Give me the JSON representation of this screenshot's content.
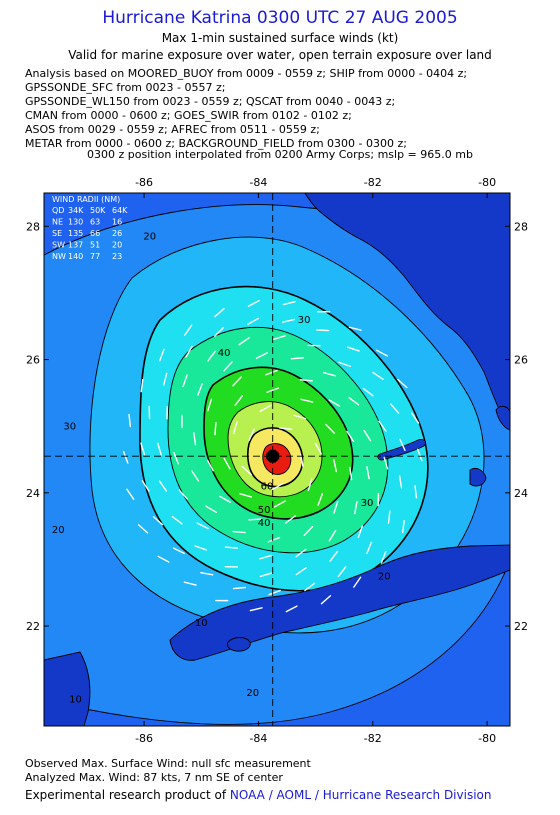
{
  "header": {
    "title": "Hurricane Katrina 0300 UTC 27 AUG 2005",
    "subtitle1": "Max 1-min sustained surface winds (kt)",
    "subtitle2": "Valid for marine exposure over water, open terrain exposure over land"
  },
  "analysis_lines": [
    "Analysis based on  MOORED_BUOY from 0009 - 0559 z;  SHIP from 0000 - 0404 z;",
    "GPSSONDE_SFC from 0023 - 0557 z;",
    "GPSSONDE_WL150 from 0023 - 0559 z;  QSCAT from 0040 - 0043 z;",
    "CMAN from 0000 - 0600 z;  GOES_SWIR from 0102 - 0102 z;",
    "ASOS from 0029 - 0559 z;  AFREC from 0511 - 0559 z;",
    "METAR from 0000 - 0600 z;  BACKGROUND_FIELD from 0300 - 0300 z;"
  ],
  "interpolation_note": "0300 z position interpolated from 0200 Army Corps; mslp = 965.0 mb",
  "map": {
    "lon_range": [
      -87.75,
      -79.6
    ],
    "lat_range": [
      20.5,
      28.5
    ],
    "lon_ticks": [
      {
        "value": -86,
        "label": "-86"
      },
      {
        "value": -84,
        "label": "-84"
      },
      {
        "value": -82,
        "label": "-82"
      },
      {
        "value": -80,
        "label": "-80"
      }
    ],
    "lat_ticks": [
      {
        "value": 28,
        "label": "28"
      },
      {
        "value": 26,
        "label": "26"
      },
      {
        "value": 24,
        "label": "24"
      },
      {
        "value": 22,
        "label": "22"
      }
    ],
    "center": {
      "lon": -83.75,
      "lat": 24.55
    },
    "wind_radii": {
      "title": "WIND RADII (NM)",
      "header": [
        "QD",
        "34K",
        "50K",
        "64K"
      ],
      "rows": [
        [
          "NE",
          "130",
          "63",
          "16"
        ],
        [
          "SE",
          "135",
          "66",
          "26"
        ],
        [
          "SW",
          "137",
          "51",
          "20"
        ],
        [
          "NW",
          "140",
          "77",
          "23"
        ]
      ]
    },
    "contour_labels": [
      {
        "text": "20",
        "lon": -85.9,
        "lat": 27.8
      },
      {
        "text": "30",
        "lon": -83.2,
        "lat": 26.55
      },
      {
        "text": "40",
        "lon": -84.6,
        "lat": 26.05
      },
      {
        "text": "30",
        "lon": -87.3,
        "lat": 24.95
      },
      {
        "text": "60",
        "lon": -83.85,
        "lat": 24.05
      },
      {
        "text": "50",
        "lon": -83.9,
        "lat": 23.7
      },
      {
        "text": "40",
        "lon": -83.9,
        "lat": 23.5
      },
      {
        "text": "30",
        "lon": -82.1,
        "lat": 23.8
      },
      {
        "text": "20",
        "lon": -81.8,
        "lat": 22.7
      },
      {
        "text": "20",
        "lon": -87.5,
        "lat": 23.4
      },
      {
        "text": "10",
        "lon": -85.0,
        "lat": 22.0
      },
      {
        "text": "20",
        "lon": -84.1,
        "lat": 20.95
      },
      {
        "text": "10",
        "lon": -87.2,
        "lat": 20.85
      }
    ]
  },
  "colors": {
    "water_blue": "#1f62f0",
    "band_10": "#1f62f0",
    "band_20": "#2188f6",
    "band_30": "#20b6f8",
    "band_40": "#1ee0f0",
    "band_50": "#19e89a",
    "band_60": "#22dc22",
    "band_70": "#b8f050",
    "band_80": "#f6e860",
    "core": "#e81c10",
    "outer_dark": "#1438c8",
    "land": "#1438c8",
    "title_blue": "#1a1ad6"
  },
  "footer": {
    "observed": "Observed Max. Surface Wind: null sfc measurement",
    "analyzed": "Analyzed Max. Wind: 87 kts, 7 nm SE of center",
    "credit_prefix": "Experimental research product of ",
    "credit_org": "NOAA / AOML / Hurricane Research Division"
  }
}
